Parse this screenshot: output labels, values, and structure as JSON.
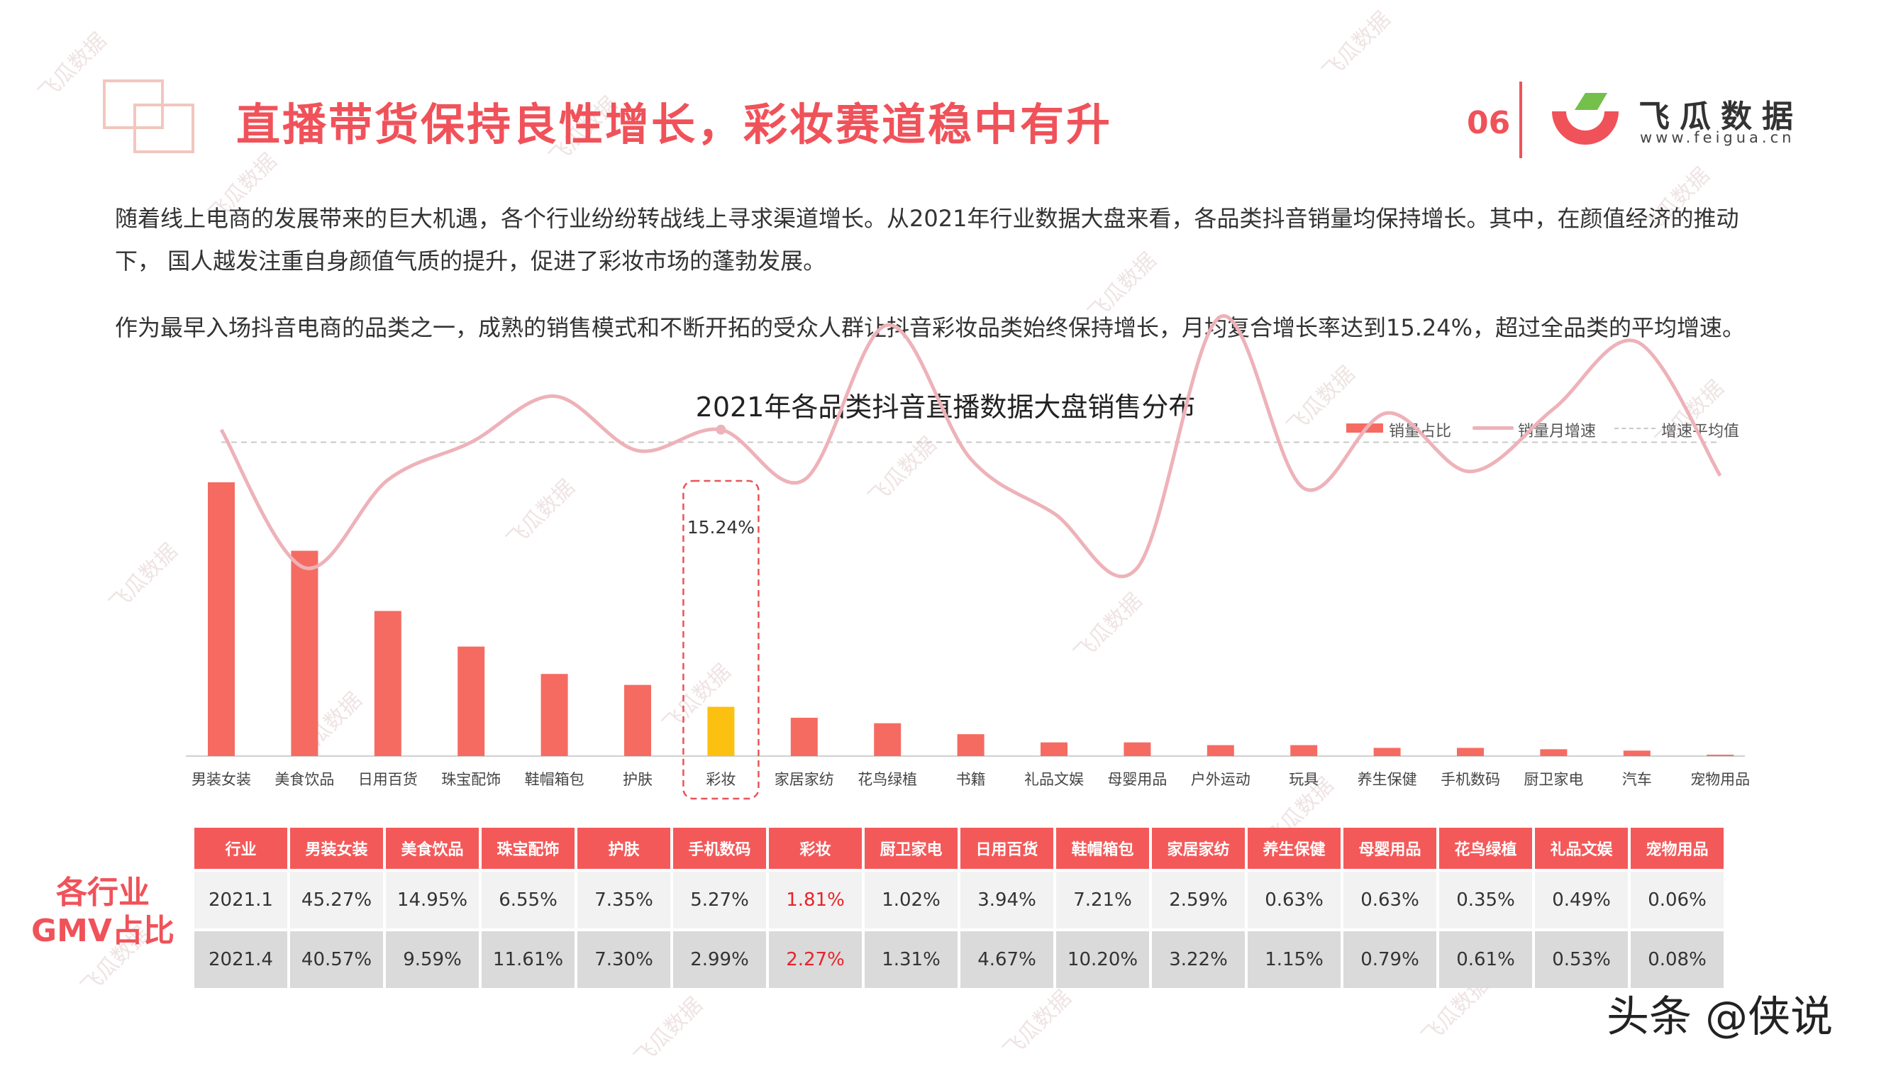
{
  "header": {
    "title": "直播带货保持良性增长，彩妆赛道稳中有升",
    "page_number": "06",
    "logo_name": "飞瓜数据",
    "logo_url": "www.feigua.cn",
    "logo_colors": [
      "#f0525a",
      "#74c04a"
    ]
  },
  "watermark": "飞瓜数据",
  "paragraphs": [
    "随着线上电商的发展带来的巨大机遇，各个行业纷纷转战线上寻求渠道增长。从2021年行业数据大盘来看，各品类抖音销量均保持增长。其中，在颜值经济的推动下， 国人越发注重自身颜值气质的提升，促进了彩妆市场的蓬勃发展。",
    "作为最早入场抖音电商的品类之一，成熟的销售模式和不断开拓的受众人群让抖音彩妆品类始终保持增长，月均复合增长率达到15.24%，超过全品类的平均增速。"
  ],
  "chart_data": {
    "type": "bar",
    "title": "2021年各品类抖音直播数据大盘销售分布",
    "legend_position": "top-right",
    "grid": false,
    "categories": [
      "男装女装",
      "美食饮品",
      "日用百货",
      "珠宝配饰",
      "鞋帽箱包",
      "护肤",
      "彩妆",
      "家居家纺",
      "花鸟绿植",
      "书籍",
      "礼品文娱",
      "母婴用品",
      "户外运动",
      "玩具",
      "养生保健",
      "手机数码",
      "厨卫家电",
      "汽车",
      "宠物用品"
    ],
    "series": [
      {
        "name": "销量占比",
        "type": "bar",
        "values": [
          100,
          75,
          53,
          40,
          30,
          26,
          18,
          14,
          12,
          8,
          5,
          5,
          4,
          4,
          3,
          3,
          2.5,
          2,
          0.5
        ],
        "color": "#f56b62",
        "highlight_category": "彩妆",
        "highlight_color": "#fcc011"
      },
      {
        "name": "销量月增速",
        "type": "line",
        "values": [
          78,
          45,
          66,
          75,
          86,
          73,
          78,
          66,
          103,
          71,
          58,
          45,
          105,
          64,
          82,
          68,
          83,
          99,
          67
        ],
        "color": "#eeb2b9"
      },
      {
        "name": "增速平均值",
        "type": "hline",
        "value": 75,
        "color": "#c8c8c8"
      }
    ],
    "annotation": {
      "category": "彩妆",
      "text": "15.24%"
    }
  },
  "table": {
    "side_label": [
      "各行业",
      "GMV占比"
    ],
    "headers": [
      "行业",
      "男装女装",
      "美食饮品",
      "珠宝配饰",
      "护肤",
      "手机数码",
      "彩妆",
      "厨卫家电",
      "日用百货",
      "鞋帽箱包",
      "家居家纺",
      "养生保健",
      "母婴用品",
      "花鸟绿植",
      "礼品文娱",
      "宠物用品"
    ],
    "rows": [
      [
        "2021.1",
        "45.27%",
        "14.95%",
        "6.55%",
        "7.35%",
        "5.27%",
        "1.81%",
        "1.02%",
        "3.94%",
        "7.21%",
        "2.59%",
        "0.63%",
        "0.63%",
        "0.35%",
        "0.49%",
        "0.06%"
      ],
      [
        "2021.4",
        "40.57%",
        "9.59%",
        "11.61%",
        "7.30%",
        "2.99%",
        "2.27%",
        "1.31%",
        "4.67%",
        "10.20%",
        "3.22%",
        "1.15%",
        "0.79%",
        "0.61%",
        "0.53%",
        "0.08%"
      ]
    ],
    "highlight_column": 6,
    "highlight_color": "#e8232b"
  },
  "credit": "头条 @侠说"
}
